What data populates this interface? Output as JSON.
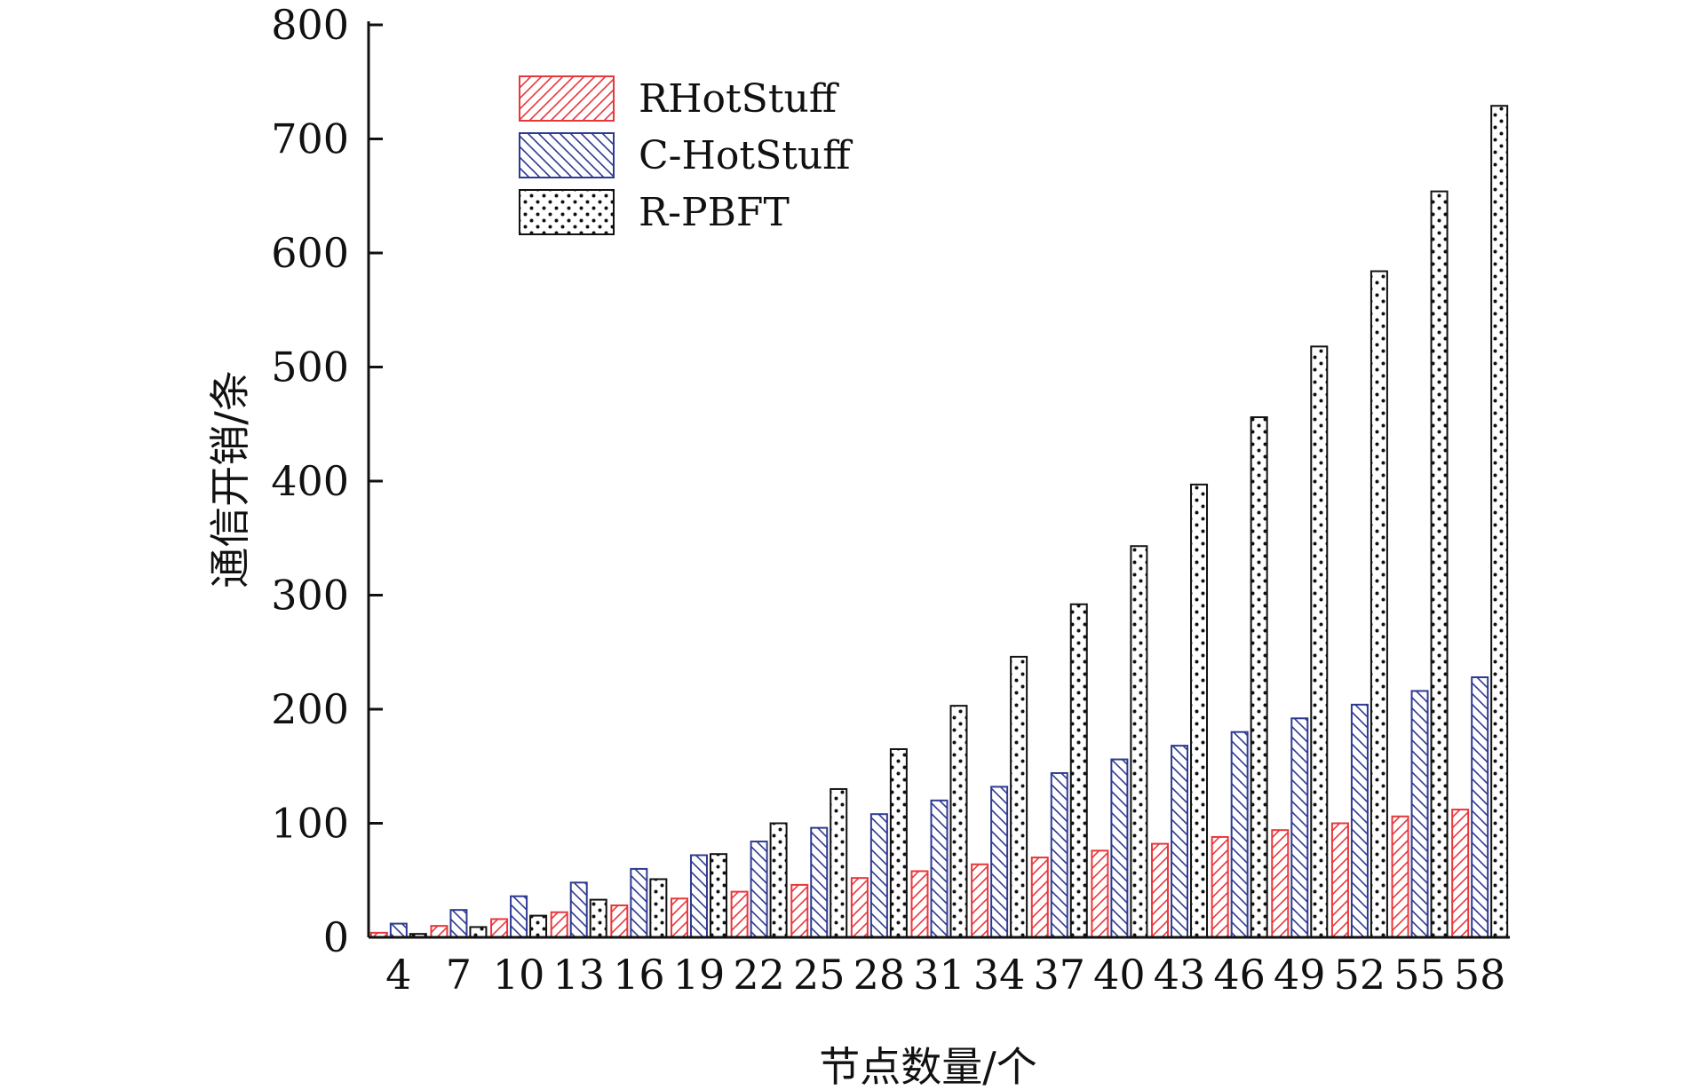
{
  "chart_data": {
    "type": "bar",
    "title": "",
    "xlabel": "节点数量/个",
    "ylabel": "通信开销/条",
    "ylim": [
      0,
      800
    ],
    "yticks": [
      0,
      100,
      200,
      300,
      400,
      500,
      600,
      700,
      800
    ],
    "categories": [
      "4",
      "7",
      "10",
      "13",
      "16",
      "19",
      "22",
      "25",
      "28",
      "31",
      "34",
      "37",
      "40",
      "43",
      "46",
      "49",
      "52",
      "55",
      "58"
    ],
    "series": [
      {
        "name": "RHotStuff",
        "color": "#e8373a",
        "pattern": "hatch-forward",
        "values": [
          4,
          10,
          16,
          22,
          28,
          34,
          40,
          46,
          52,
          58,
          64,
          70,
          76,
          82,
          88,
          94,
          100,
          106,
          112
        ]
      },
      {
        "name": "C-HotStuff",
        "color": "#2e3a92",
        "pattern": "hatch-backward",
        "values": [
          12,
          24,
          36,
          48,
          60,
          72,
          84,
          96,
          108,
          120,
          132,
          144,
          156,
          168,
          180,
          192,
          204,
          216,
          228
        ]
      },
      {
        "name": "R-PBFT",
        "color": "#111111",
        "pattern": "dots",
        "values": [
          3,
          9,
          19,
          33,
          51,
          73,
          100,
          130,
          165,
          203,
          246,
          292,
          343,
          397,
          456,
          518,
          584,
          654,
          729
        ]
      }
    ],
    "grid": false,
    "legend_position": "top-left"
  }
}
